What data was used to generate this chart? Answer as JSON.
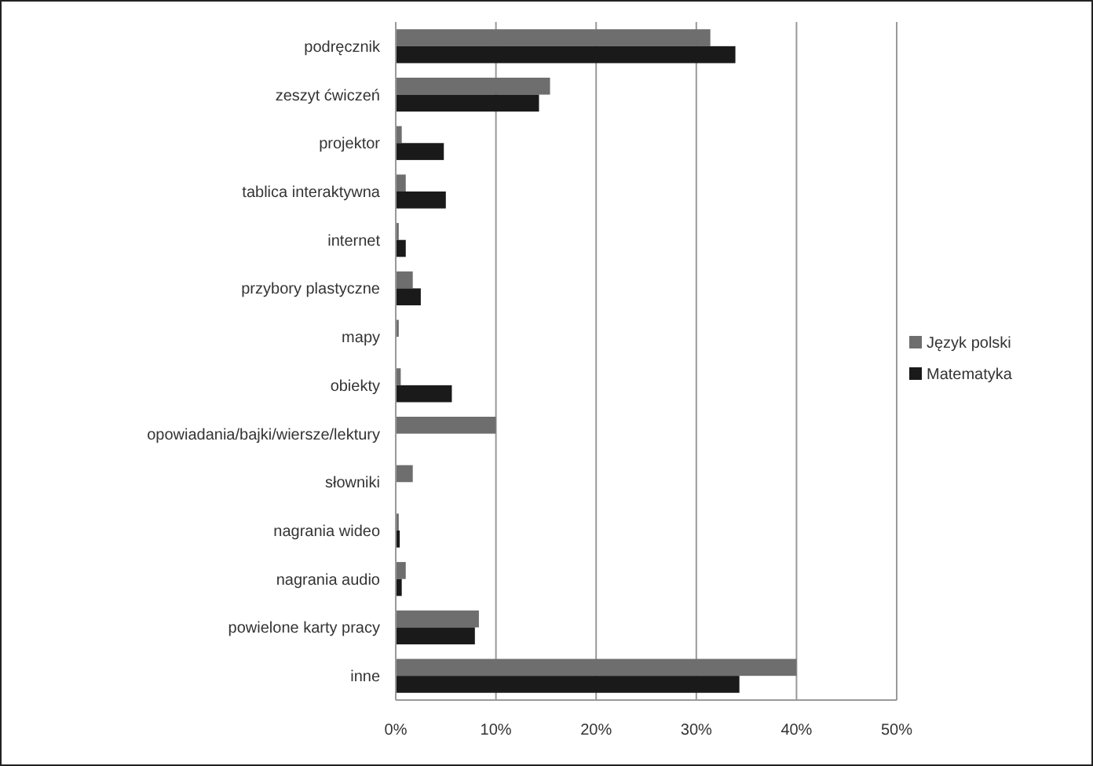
{
  "chart_data": {
    "type": "bar",
    "orientation": "horizontal",
    "categories": [
      "podręcznik",
      "zeszyt ćwiczeń",
      "projektor",
      "tablica interaktywna",
      "internet",
      "przybory plastyczne",
      "mapy",
      "obiekty",
      "opowiadania/bajki/wiersze/lektury",
      "słowniki",
      "nagrania wideo",
      "nagrania audio",
      "powielone karty pracy",
      "inne"
    ],
    "series": [
      {
        "name": "Język polski",
        "color": "#6e6e6e",
        "values": [
          31.4,
          15.4,
          0.6,
          1.0,
          0.3,
          1.7,
          0.3,
          0.5,
          10.0,
          1.7,
          0.3,
          1.0,
          8.3,
          40.0
        ]
      },
      {
        "name": "Matematyka",
        "color": "#1a1a1a",
        "values": [
          33.9,
          14.3,
          4.8,
          5.0,
          1.0,
          2.5,
          null,
          5.6,
          0,
          0,
          0.4,
          0.6,
          7.9,
          34.3
        ]
      }
    ],
    "xlim": [
      0,
      50
    ],
    "xticks": [
      {
        "value": 0,
        "label": "0%"
      },
      {
        "value": 10,
        "label": "10%"
      },
      {
        "value": 20,
        "label": "20%"
      },
      {
        "value": 30,
        "label": "30%"
      },
      {
        "value": 40,
        "label": "40%"
      },
      {
        "value": 50,
        "label": "50%"
      }
    ],
    "grid": "x",
    "legend": "right"
  }
}
